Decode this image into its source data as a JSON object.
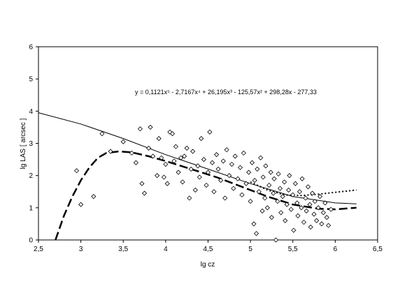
{
  "chart_data": {
    "type": "scatter",
    "title": "",
    "xlabel": "lg cz",
    "ylabel": "lg LAS  [ arcsec ]",
    "xlim": [
      2.5,
      6.5
    ],
    "ylim": [
      0,
      6
    ],
    "xticks": [
      2.5,
      3,
      3.5,
      4,
      4.5,
      5,
      5.5,
      6,
      6.5
    ],
    "xtick_labels": [
      "2,5",
      "3",
      "3,5",
      "4",
      "4,5",
      "5",
      "5,5",
      "6",
      "6,5"
    ],
    "yticks": [
      0,
      1,
      2,
      3,
      4,
      5,
      6
    ],
    "ytick_labels": [
      "0",
      "1",
      "2",
      "3",
      "4",
      "5",
      "6"
    ],
    "grid": false,
    "legend": "none",
    "annotation": "y = 0,1121x⁵ - 2,7167x⁴ + 26,195x³ - 125,57x² + 298,28x - 277,33",
    "marker": "diamond-open",
    "series": [
      {
        "style": "scatter",
        "points": [
          [
            2.95,
            2.15
          ],
          [
            3.0,
            1.1
          ],
          [
            3.15,
            1.35
          ],
          [
            3.25,
            3.3
          ],
          [
            3.35,
            2.75
          ],
          [
            3.5,
            3.05
          ],
          [
            3.6,
            2.7
          ],
          [
            3.65,
            2.4
          ],
          [
            3.7,
            3.45
          ],
          [
            3.72,
            1.75
          ],
          [
            3.75,
            1.45
          ],
          [
            3.8,
            2.85
          ],
          [
            3.82,
            3.5
          ],
          [
            3.85,
            2.6
          ],
          [
            3.9,
            2.0
          ],
          [
            3.92,
            3.15
          ],
          [
            3.95,
            2.55
          ],
          [
            3.98,
            1.95
          ],
          [
            4.0,
            2.35
          ],
          [
            4.02,
            1.75
          ],
          [
            4.05,
            3.35
          ],
          [
            4.08,
            3.3
          ],
          [
            4.1,
            2.45
          ],
          [
            4.12,
            2.9
          ],
          [
            4.15,
            2.1
          ],
          [
            4.18,
            2.55
          ],
          [
            4.2,
            1.8
          ],
          [
            4.22,
            2.6
          ],
          [
            4.25,
            2.85
          ],
          [
            4.28,
            1.3
          ],
          [
            4.3,
            2.2
          ],
          [
            4.32,
            2.75
          ],
          [
            4.35,
            1.55
          ],
          [
            4.38,
            2.3
          ],
          [
            4.4,
            1.95
          ],
          [
            4.42,
            3.15
          ],
          [
            4.45,
            2.5
          ],
          [
            4.48,
            1.7
          ],
          [
            4.5,
            2.1
          ],
          [
            4.52,
            3.35
          ],
          [
            4.55,
            2.4
          ],
          [
            4.57,
            1.5
          ],
          [
            4.6,
            2.65
          ],
          [
            4.62,
            2.2
          ],
          [
            4.65,
            1.85
          ],
          [
            4.68,
            2.45
          ],
          [
            4.7,
            1.3
          ],
          [
            4.72,
            2.8
          ],
          [
            4.75,
            2.0
          ],
          [
            4.78,
            2.35
          ],
          [
            4.8,
            1.6
          ],
          [
            4.82,
            2.6
          ],
          [
            4.85,
            1.9
          ],
          [
            4.88,
            2.25
          ],
          [
            4.9,
            1.4
          ],
          [
            4.92,
            2.7
          ],
          [
            4.95,
            1.75
          ],
          [
            4.98,
            2.1
          ],
          [
            5.0,
            1.2
          ],
          [
            5.02,
            2.4
          ],
          [
            5.04,
            0.5
          ],
          [
            5.05,
            1.85
          ],
          [
            5.07,
            0.2
          ],
          [
            5.08,
            2.2
          ],
          [
            5.1,
            1.5
          ],
          [
            5.12,
            2.55
          ],
          [
            5.14,
            0.9
          ],
          [
            5.15,
            1.95
          ],
          [
            5.17,
            1.3
          ],
          [
            5.18,
            2.3
          ],
          [
            5.2,
            1.0
          ],
          [
            5.22,
            1.7
          ],
          [
            5.24,
            2.1
          ],
          [
            5.25,
            0.7
          ],
          [
            5.27,
            1.45
          ],
          [
            5.28,
            1.9
          ],
          [
            5.3,
            0.0
          ],
          [
            5.32,
            1.2
          ],
          [
            5.33,
            2.05
          ],
          [
            5.35,
            1.6
          ],
          [
            5.36,
            0.85
          ],
          [
            5.38,
            1.35
          ],
          [
            5.4,
            1.8
          ],
          [
            5.41,
            0.6
          ],
          [
            5.43,
            1.1
          ],
          [
            5.45,
            1.55
          ],
          [
            5.46,
            2.0
          ],
          [
            5.48,
            0.95
          ],
          [
            5.5,
            1.4
          ],
          [
            5.51,
            0.3
          ],
          [
            5.53,
            1.75
          ],
          [
            5.55,
            1.15
          ],
          [
            5.56,
            0.75
          ],
          [
            5.58,
            1.5
          ],
          [
            5.6,
            1.0
          ],
          [
            5.61,
            1.9
          ],
          [
            5.63,
            0.55
          ],
          [
            5.65,
            1.3
          ],
          [
            5.66,
            0.9
          ],
          [
            5.68,
            1.65
          ],
          [
            5.7,
            1.1
          ],
          [
            5.71,
            0.4
          ],
          [
            5.73,
            1.45
          ],
          [
            5.75,
            0.8
          ],
          [
            5.76,
            1.2
          ],
          [
            5.78,
            0.6
          ],
          [
            5.8,
            1.0
          ],
          [
            5.82,
            1.35
          ],
          [
            5.84,
            0.5
          ],
          [
            5.86,
            0.85
          ],
          [
            5.88,
            1.15
          ],
          [
            5.9,
            0.7
          ],
          [
            5.92,
            0.45
          ],
          [
            5.95,
            0.95
          ]
        ]
      },
      {
        "style": "solid",
        "points": [
          [
            2.5,
            3.95
          ],
          [
            3.0,
            3.6
          ],
          [
            3.5,
            3.15
          ],
          [
            4.0,
            2.65
          ],
          [
            4.5,
            2.2
          ],
          [
            5.0,
            1.75
          ],
          [
            5.5,
            1.35
          ],
          [
            6.0,
            1.15
          ],
          [
            6.25,
            1.12
          ]
        ]
      },
      {
        "style": "dashed",
        "points": [
          [
            2.7,
            0.0
          ],
          [
            2.8,
            0.75
          ],
          [
            2.9,
            1.35
          ],
          [
            3.0,
            1.85
          ],
          [
            3.1,
            2.25
          ],
          [
            3.2,
            2.55
          ],
          [
            3.3,
            2.7
          ],
          [
            3.45,
            2.75
          ],
          [
            3.6,
            2.72
          ],
          [
            3.8,
            2.6
          ],
          [
            4.0,
            2.45
          ],
          [
            4.3,
            2.2
          ],
          [
            4.6,
            1.95
          ],
          [
            4.9,
            1.65
          ],
          [
            5.2,
            1.35
          ],
          [
            5.5,
            1.1
          ],
          [
            5.8,
            0.97
          ],
          [
            6.0,
            0.95
          ],
          [
            6.25,
            1.0
          ]
        ]
      },
      {
        "style": "dotted",
        "points": [
          [
            5.0,
            1.8
          ],
          [
            5.2,
            1.55
          ],
          [
            5.4,
            1.4
          ],
          [
            5.6,
            1.38
          ],
          [
            5.8,
            1.42
          ],
          [
            6.0,
            1.48
          ],
          [
            6.25,
            1.55
          ]
        ]
      }
    ]
  }
}
